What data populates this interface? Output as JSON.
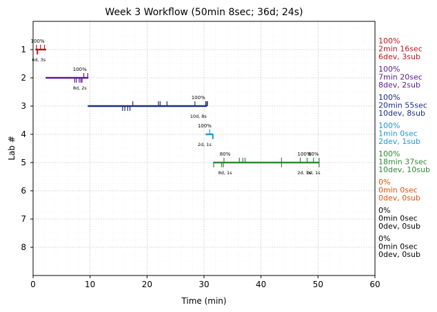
{
  "chart_data": {
    "type": "timeline",
    "title": "Week 3 Workflow (50min 8sec; 36d; 24s)",
    "xlabel": "Time (min)",
    "ylabel": "Lab #",
    "xlim": [
      0,
      60
    ],
    "ylim": [
      9,
      0
    ],
    "x_ticks": [
      0,
      10,
      20,
      30,
      40,
      50,
      60
    ],
    "y_ticks": [
      1,
      2,
      3,
      4,
      5,
      6,
      7,
      8
    ],
    "grid": true,
    "labs": [
      {
        "lab": 1,
        "color": "#c0161d",
        "start": 0.4,
        "end": 2.3,
        "sub_ticks": [
          0.6,
          1.3,
          2.0
        ],
        "dev_ticks": [
          0.7,
          0.8
        ],
        "pct_labels": [
          {
            "x": 0.8,
            "text": "100%"
          }
        ],
        "count_labels": [
          {
            "x": 1.0,
            "text": "6d, 3s"
          }
        ],
        "summary": [
          "100%",
          "2min 16sec",
          "6dev, 3sub"
        ]
      },
      {
        "lab": 2,
        "color": "#5b1a86",
        "start": 2.2,
        "end": 9.7,
        "sub_ticks": [
          8.9,
          9.6
        ],
        "dev_ticks": [
          7.3,
          7.6,
          8.1,
          8.4,
          8.6
        ],
        "pct_labels": [
          {
            "x": 8.2,
            "text": "100%"
          }
        ],
        "count_labels": [
          {
            "x": 8.2,
            "text": "8d, 2s"
          }
        ],
        "summary": [
          "100%",
          "7min 20sec",
          "8dev, 2sub"
        ]
      },
      {
        "lab": 3,
        "color": "#1c2c80",
        "start": 9.6,
        "end": 30.5,
        "sub_ticks": [
          17.5,
          22.0,
          22.3,
          23.5,
          28.4,
          30.3,
          30.5,
          30.6
        ],
        "dev_ticks": [
          15.7,
          16.1,
          16.6,
          17.0
        ],
        "pct_labels": [
          {
            "x": 29.0,
            "text": "100%"
          }
        ],
        "count_labels": [
          {
            "x": 29.0,
            "text": "10d, 8s"
          }
        ],
        "summary": [
          "100%",
          "20min 55sec",
          "10dev, 8sub"
        ]
      },
      {
        "lab": 4,
        "color": "#2196d8",
        "start": 30.3,
        "end": 31.6,
        "sub_ticks": [
          31.0
        ],
        "dev_ticks": [
          31.5,
          31.6
        ],
        "pct_labels": [
          {
            "x": 30.1,
            "text": "100%"
          }
        ],
        "count_labels": [
          {
            "x": 30.1,
            "text": "2d, 1s"
          }
        ],
        "summary": [
          "100%",
          "1min 0sec",
          "2dev, 1sub"
        ]
      },
      {
        "lab": 5,
        "color": "#2d8a32",
        "start": 31.6,
        "end": 50.2,
        "sub_ticks": [
          33.5,
          36.2,
          36.8,
          37.2,
          43.6,
          46.9,
          48.1,
          49.2,
          50.2
        ],
        "dev_ticks": [
          31.7,
          33.1,
          33.4,
          43.6,
          50.2
        ],
        "pct_labels": [
          {
            "x": 33.7,
            "text": "80%"
          },
          {
            "x": 47.6,
            "text": "100%"
          },
          {
            "x": 49.2,
            "text": "80%"
          }
        ],
        "count_labels": [
          {
            "x": 33.7,
            "text": "8d, 1s"
          },
          {
            "x": 47.6,
            "text": "2d, 1s"
          },
          {
            "x": 49.2,
            "text": "0d, 1s"
          }
        ],
        "summary": [
          "100%",
          "18min 37sec",
          "10dev, 10sub"
        ]
      },
      {
        "lab": 6,
        "color": "#e0520a",
        "summary": [
          "0%",
          "0min 0sec",
          "0dev, 0sub"
        ]
      },
      {
        "lab": 7,
        "color": "#000000",
        "summary": [
          "0%",
          "0min 0sec",
          "0dev, 0sub"
        ]
      },
      {
        "lab": 8,
        "color": "#000000",
        "summary": [
          "0%",
          "0min 0sec",
          "0dev, 0sub"
        ]
      }
    ]
  }
}
